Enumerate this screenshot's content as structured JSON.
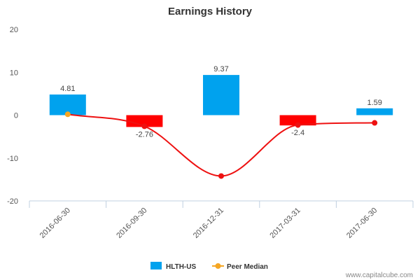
{
  "chart_data": {
    "type": "bar",
    "title": "Earnings History",
    "categories": [
      "2016-06-30",
      "2016-09-30",
      "2016-12-31",
      "2017-03-31",
      "2017-06-30"
    ],
    "series": [
      {
        "name": "HLTH-US",
        "type": "bar",
        "values": [
          4.81,
          -2.76,
          9.37,
          -2.4,
          1.59
        ],
        "labels": [
          "4.81",
          "-2.76",
          "9.37",
          "-2.4",
          "1.59"
        ],
        "colors": [
          "#00a2ee",
          "#ff0000",
          "#00a2ee",
          "#ff0000",
          "#00a2ee"
        ]
      },
      {
        "name": "Peer Median",
        "type": "line",
        "values": [
          0.2,
          -2.6,
          -14.2,
          -2.3,
          -1.8
        ],
        "color": "#ee1111",
        "marker_colors": [
          "#f5a623",
          "#ee1111",
          "#ee1111",
          "#ee1111",
          "#ee1111"
        ]
      }
    ],
    "ylim": [
      -20,
      20
    ],
    "yticks": [
      20,
      10,
      0,
      -10,
      -20
    ],
    "grid": false,
    "legend": "bottom",
    "colors": {
      "positive": "#00a2ee",
      "negative": "#ff0000",
      "median_legend": "#f5a623"
    }
  },
  "credit": "www.capitalcube.com"
}
